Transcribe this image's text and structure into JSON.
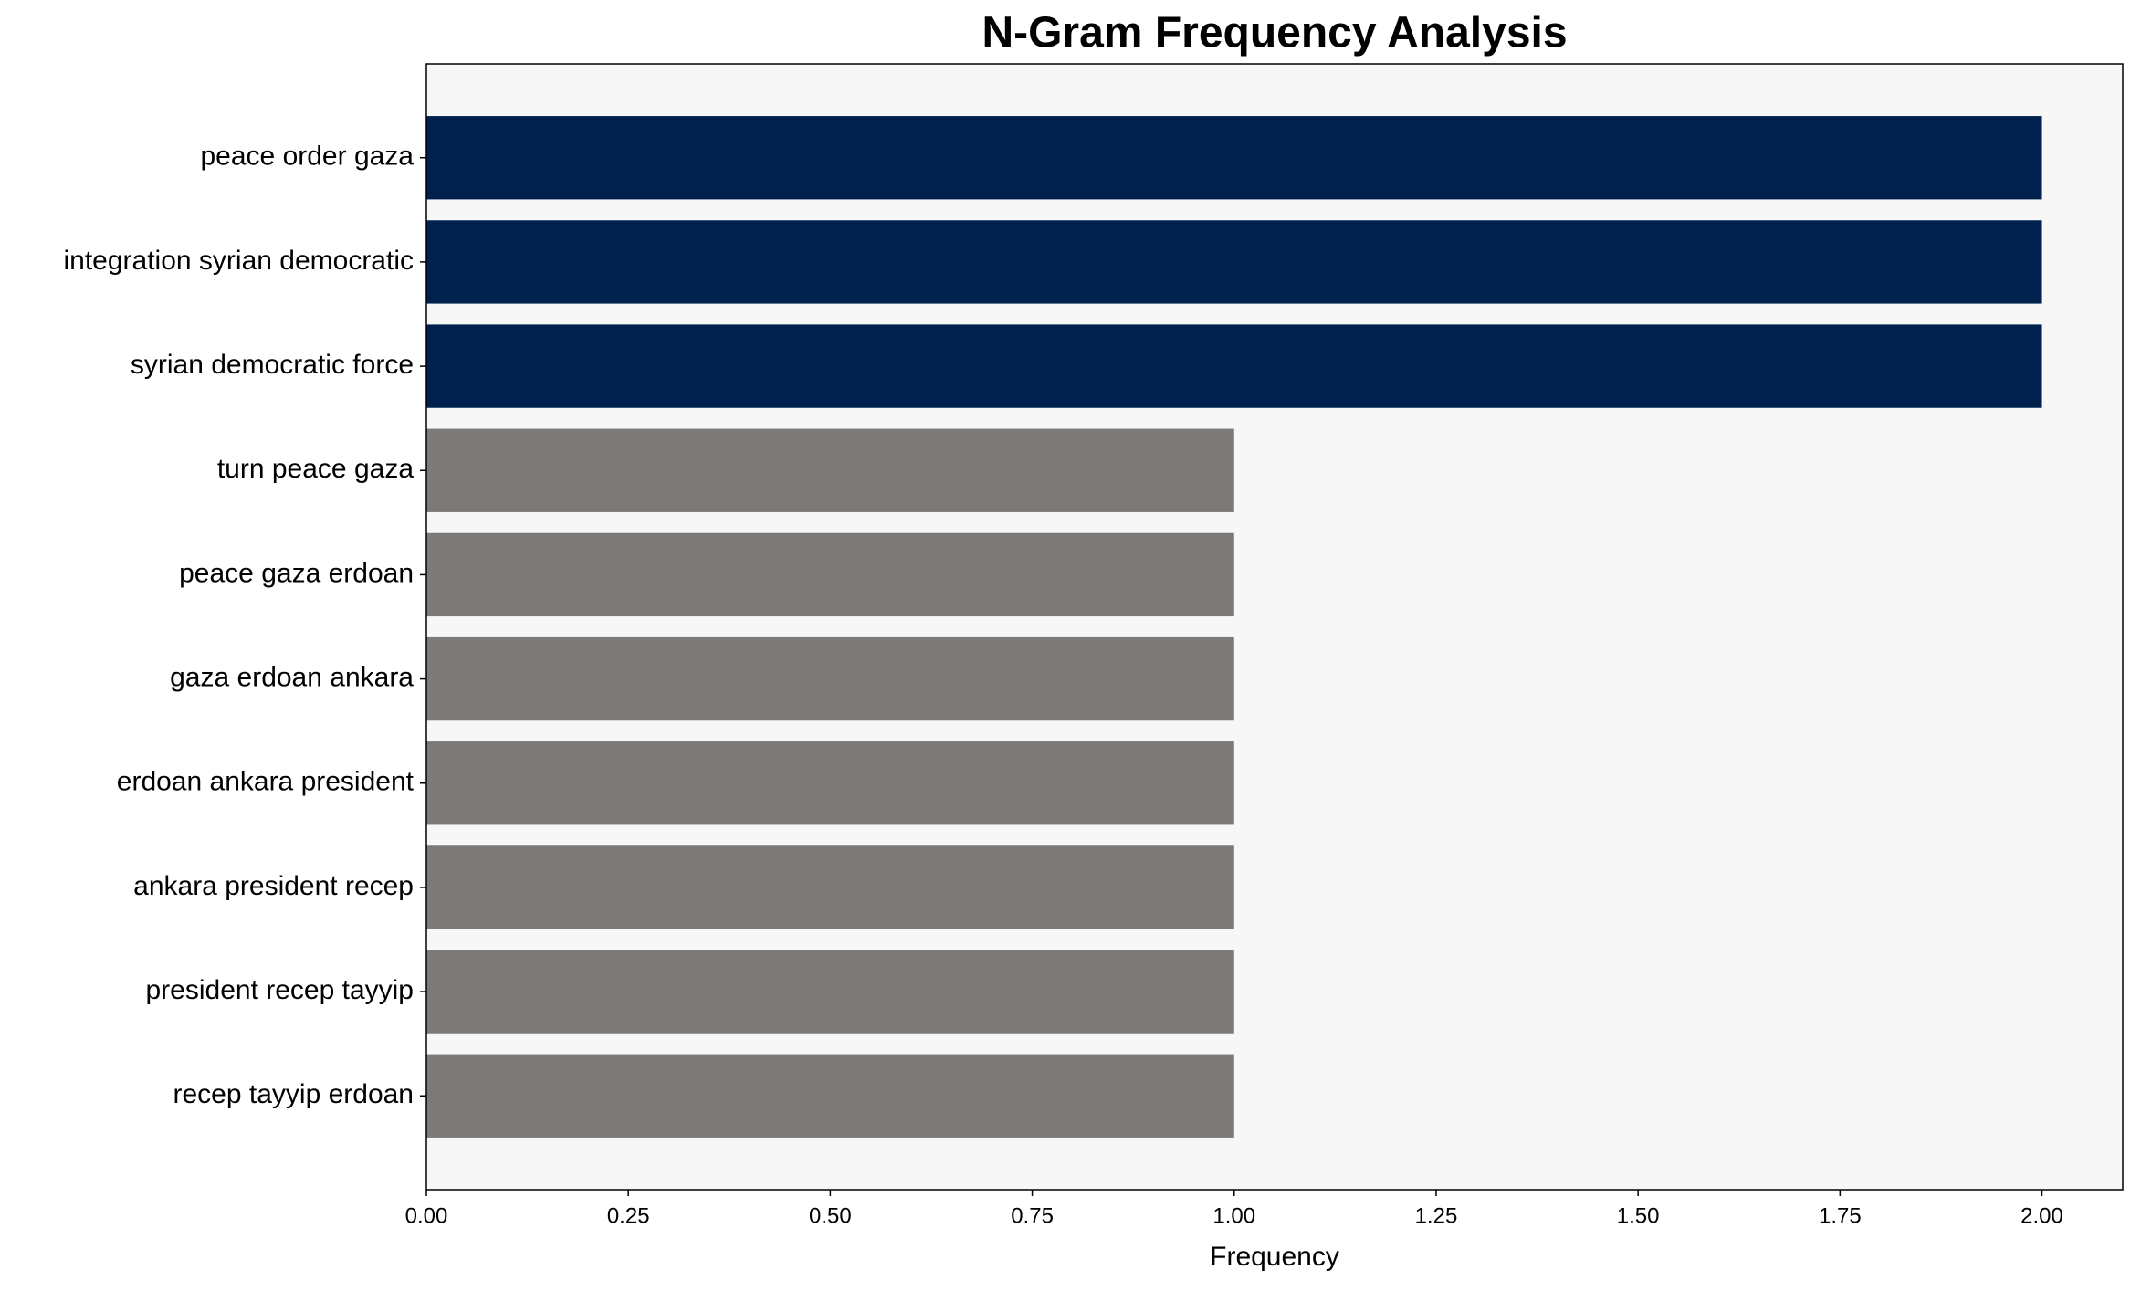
{
  "chart_data": {
    "type": "barh",
    "title": "N-Gram Frequency Analysis",
    "xlabel": "Frequency",
    "categories": [
      "peace order gaza",
      "integration syrian democratic",
      "syrian democratic force",
      "turn peace gaza",
      "peace gaza erdoan",
      "gaza erdoan ankara",
      "erdoan ankara president",
      "ankara president recep",
      "president recep tayyip",
      "recep tayyip erdoan"
    ],
    "values": [
      2,
      2,
      2,
      1,
      1,
      1,
      1,
      1,
      1,
      1
    ],
    "colors": [
      "#00214d",
      "#00214d",
      "#00214d",
      "#7b7a76",
      "#7b7a76",
      "#7b7a76",
      "#7b7a76",
      "#7b7a76",
      "#7b7a76",
      "#7b7a76"
    ],
    "xlim": [
      0,
      2.1
    ],
    "xticks": [
      {
        "value": 0,
        "label": "0.00"
      },
      {
        "value": 0.25,
        "label": "0.25"
      },
      {
        "value": 0.5,
        "label": "0.50"
      },
      {
        "value": 0.75,
        "label": "0.75"
      },
      {
        "value": 1,
        "label": "1.00"
      },
      {
        "value": 1.25,
        "label": "1.25"
      },
      {
        "value": 1.5,
        "label": "1.50"
      },
      {
        "value": 1.75,
        "label": "1.75"
      },
      {
        "value": 2,
        "label": "2.00"
      }
    ],
    "background": "#f7f7f7"
  }
}
